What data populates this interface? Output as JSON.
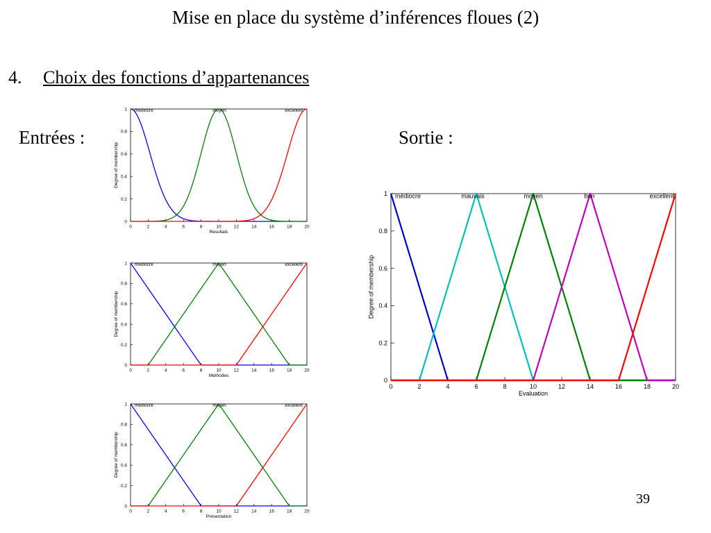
{
  "slide": {
    "title": "Mise en place du système d’inférences floues (2)",
    "item_number": "4.",
    "item_text": "Choix des fonctions d’appartenances",
    "inputs_label": "Entrées :",
    "output_label": "Sortie :",
    "page_number": "39"
  },
  "chart_data": [
    {
      "type": "line",
      "panel": "input-1",
      "xlabel": "Resultats",
      "ylabel": "Degree of membership",
      "xlim": [
        0,
        20
      ],
      "ylim": [
        0,
        1
      ],
      "xticks": [
        0,
        2,
        4,
        6,
        8,
        10,
        12,
        14,
        16,
        18,
        20
      ],
      "yticks": [
        0,
        0.2,
        0.4,
        0.6,
        0.8,
        1
      ],
      "grid": false,
      "series": [
        {
          "name": "médiocre",
          "color": "#0000ff",
          "shape": "gauss",
          "params": [
            0,
            2.2
          ]
        },
        {
          "name": "moyen",
          "color": "#008000",
          "shape": "gauss",
          "params": [
            10,
            2
          ]
        },
        {
          "name": "excellent",
          "color": "#ff0000",
          "shape": "gauss",
          "params": [
            20,
            2.2
          ]
        }
      ]
    },
    {
      "type": "line",
      "panel": "input-2",
      "xlabel": "Methodes",
      "ylabel": "Degree of membership",
      "xlim": [
        0,
        20
      ],
      "ylim": [
        0,
        1
      ],
      "xticks": [
        0,
        2,
        4,
        6,
        8,
        10,
        12,
        14,
        16,
        18,
        20
      ],
      "yticks": [
        0,
        0.2,
        0.4,
        0.6,
        0.8,
        1
      ],
      "grid": false,
      "series": [
        {
          "name": "médiocre",
          "color": "#0000ff",
          "shape": "points",
          "x": [
            0,
            8,
            20
          ],
          "y": [
            1,
            0,
            0
          ]
        },
        {
          "name": "moyen",
          "color": "#008000",
          "shape": "points",
          "x": [
            0,
            2,
            10,
            18,
            20
          ],
          "y": [
            0,
            0,
            1,
            0,
            0
          ]
        },
        {
          "name": "excellent",
          "color": "#ff0000",
          "shape": "points",
          "x": [
            0,
            12,
            20
          ],
          "y": [
            0,
            0,
            1
          ]
        }
      ]
    },
    {
      "type": "line",
      "panel": "input-3",
      "xlabel": "Présentation",
      "ylabel": "Degree of membership",
      "xlim": [
        0,
        20
      ],
      "ylim": [
        0,
        1
      ],
      "xticks": [
        0,
        2,
        4,
        6,
        8,
        10,
        12,
        14,
        16,
        18,
        20
      ],
      "yticks": [
        0,
        0.2,
        0.4,
        0.6,
        0.8,
        1
      ],
      "grid": false,
      "series": [
        {
          "name": "médiocre",
          "color": "#0000ff",
          "shape": "points",
          "x": [
            0,
            8,
            20
          ],
          "y": [
            1,
            0,
            0
          ]
        },
        {
          "name": "moyen",
          "color": "#008000",
          "shape": "points",
          "x": [
            0,
            2,
            10,
            18,
            20
          ],
          "y": [
            0,
            0,
            1,
            0,
            0
          ]
        },
        {
          "name": "excellent",
          "color": "#ff0000",
          "shape": "points",
          "x": [
            0,
            12,
            20
          ],
          "y": [
            0,
            0,
            1
          ]
        }
      ]
    },
    {
      "type": "line",
      "panel": "output",
      "xlabel": "Evaluation",
      "ylabel": "Degree of membership",
      "xlim": [
        0,
        20
      ],
      "ylim": [
        0,
        1
      ],
      "xticks": [
        0,
        2,
        4,
        6,
        8,
        10,
        12,
        14,
        16,
        18,
        20
      ],
      "yticks": [
        0,
        0.2,
        0.4,
        0.6,
        0.8,
        1
      ],
      "grid": false,
      "series": [
        {
          "name": "médiocre",
          "color": "#0000cc",
          "shape": "points",
          "x": [
            0,
            4,
            20
          ],
          "y": [
            1,
            0,
            0
          ]
        },
        {
          "name": "mauvais",
          "color": "#00bfbf",
          "shape": "points",
          "x": [
            0,
            2,
            6,
            10,
            20
          ],
          "y": [
            0,
            0,
            1,
            0,
            0
          ]
        },
        {
          "name": "moyen",
          "color": "#008000",
          "shape": "points",
          "x": [
            0,
            6,
            10,
            14,
            20
          ],
          "y": [
            0,
            0,
            1,
            0,
            0
          ]
        },
        {
          "name": "bon",
          "color": "#bf00bf",
          "shape": "points",
          "x": [
            0,
            10,
            14,
            18,
            20
          ],
          "y": [
            0,
            0,
            1,
            0,
            0
          ]
        },
        {
          "name": "excellent",
          "color": "#ff0000",
          "shape": "points",
          "x": [
            0,
            16,
            20
          ],
          "y": [
            0,
            0,
            1
          ]
        }
      ]
    }
  ]
}
